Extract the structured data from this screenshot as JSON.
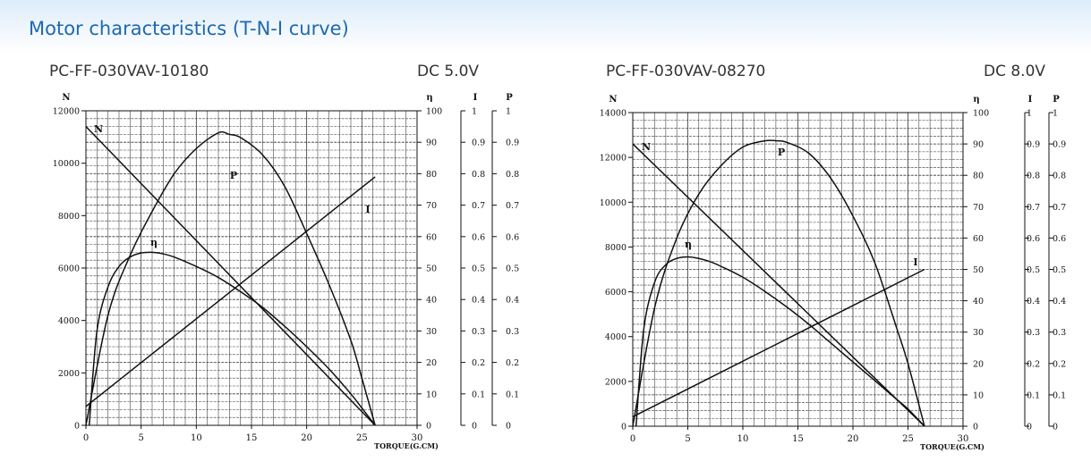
{
  "page_title": "Motor characteristics (T-N-I curve)",
  "chart_data": [
    {
      "type": "line",
      "model": "PC-FF-030VAV-10180",
      "voltage": "DC 5.0V",
      "xlabel": "TORQUE(G.CM)",
      "x_ticks": [
        "0",
        "5",
        "10",
        "15",
        "20",
        "25",
        "30"
      ],
      "xlim": [
        0,
        30
      ],
      "axes": [
        {
          "name": "N",
          "min": 0,
          "max": 12000,
          "ticks": [
            "0",
            "2000",
            "4000",
            "6000",
            "8000",
            "10000",
            "12000"
          ]
        },
        {
          "name": "η",
          "min": 0,
          "max": 100,
          "ticks": [
            "0",
            "10",
            "20",
            "30",
            "40",
            "50",
            "60",
            "70",
            "80",
            "90",
            "100"
          ]
        },
        {
          "name": "I",
          "min": 0,
          "max": 1,
          "ticks": [
            "0",
            "0.1",
            "0.2",
            "0.3",
            "0.4",
            "0.5",
            "0.6",
            "0.7",
            "0.8",
            "0.9",
            "1"
          ]
        },
        {
          "name": "P",
          "min": 0,
          "max": 1,
          "ticks": [
            "0",
            "0.1",
            "0.2",
            "0.3",
            "0.4",
            "0.5",
            "0.6",
            "0.7",
            "0.8",
            "0.9",
            "1"
          ]
        }
      ],
      "series": [
        {
          "name": "N",
          "axis": "N",
          "x": [
            0,
            26.2
          ],
          "values": [
            11400,
            0
          ]
        },
        {
          "name": "I",
          "axis": "I",
          "x": [
            0,
            26.2
          ],
          "values": [
            0.06,
            0.79
          ]
        },
        {
          "name": "P",
          "axis": "P",
          "x": [
            0,
            2,
            4,
            6,
            8,
            10,
            12,
            13,
            14,
            16,
            18,
            20,
            22,
            24,
            25,
            26.2
          ],
          "values": [
            0,
            0.35,
            0.54,
            0.68,
            0.8,
            0.88,
            0.93,
            0.925,
            0.915,
            0.86,
            0.76,
            0.61,
            0.45,
            0.27,
            0.15,
            0
          ]
        },
        {
          "name": "η",
          "axis": "η",
          "x": [
            0.3,
            1,
            2,
            3,
            4,
            5,
            6,
            7,
            8,
            10,
            12,
            14,
            16,
            18,
            20,
            22,
            24,
            25,
            26.2
          ],
          "values": [
            0,
            30,
            44,
            50.5,
            53.5,
            54.8,
            55,
            54.5,
            53.5,
            50.5,
            47,
            42.5,
            37.5,
            31.5,
            25,
            18,
            10,
            5.5,
            0
          ]
        }
      ]
    },
    {
      "type": "line",
      "model": "PC-FF-030VAV-08270",
      "voltage": "DC 8.0V",
      "xlabel": "TORQUE(G.CM)",
      "x_ticks": [
        "0",
        "5",
        "10",
        "15",
        "20",
        "25",
        "30"
      ],
      "xlim": [
        0,
        30
      ],
      "axes": [
        {
          "name": "N",
          "min": 0,
          "max": 14000,
          "ticks": [
            "0",
            "2000",
            "4000",
            "6000",
            "8000",
            "10000",
            "12000",
            "14000"
          ]
        },
        {
          "name": "η",
          "min": 0,
          "max": 100,
          "ticks": [
            "0",
            "10",
            "20",
            "30",
            "40",
            "50",
            "60",
            "70",
            "80",
            "90",
            "100"
          ]
        },
        {
          "name": "I",
          "min": 0,
          "max": 1,
          "ticks": [
            "0",
            "0.1",
            "0.2",
            "0.3",
            "0.4",
            "0.5",
            "0.6",
            "0.7",
            "0.8",
            "0.9",
            "1"
          ]
        },
        {
          "name": "P",
          "min": 0,
          "max": 1,
          "ticks": [
            "0",
            "0.1",
            "0.2",
            "0.3",
            "0.4",
            "0.5",
            "0.6",
            "0.7",
            "0.8",
            "0.9",
            "1"
          ]
        }
      ],
      "series": [
        {
          "name": "N",
          "axis": "N",
          "x": [
            0,
            26.5
          ],
          "values": [
            12600,
            0
          ]
        },
        {
          "name": "I",
          "axis": "I",
          "x": [
            0,
            26.5
          ],
          "values": [
            0.03,
            0.5
          ]
        },
        {
          "name": "P",
          "axis": "P",
          "x": [
            0,
            2,
            4,
            6,
            8,
            10,
            12,
            13,
            14,
            16,
            18,
            20,
            22,
            24,
            25,
            26.5
          ],
          "values": [
            0,
            0.38,
            0.6,
            0.74,
            0.83,
            0.89,
            0.91,
            0.91,
            0.905,
            0.87,
            0.79,
            0.67,
            0.52,
            0.31,
            0.2,
            0
          ]
        },
        {
          "name": "η",
          "axis": "η",
          "x": [
            0.3,
            1,
            2,
            3,
            4,
            5,
            6,
            7,
            8,
            10,
            12,
            14,
            16,
            18,
            20,
            22,
            24,
            25,
            26.5
          ],
          "values": [
            0,
            31,
            46,
            51.5,
            53.5,
            54,
            53.5,
            52.5,
            51,
            47.5,
            43,
            38,
            32.5,
            26.5,
            20.5,
            14.5,
            8.5,
            5.5,
            0
          ]
        }
      ]
    }
  ]
}
